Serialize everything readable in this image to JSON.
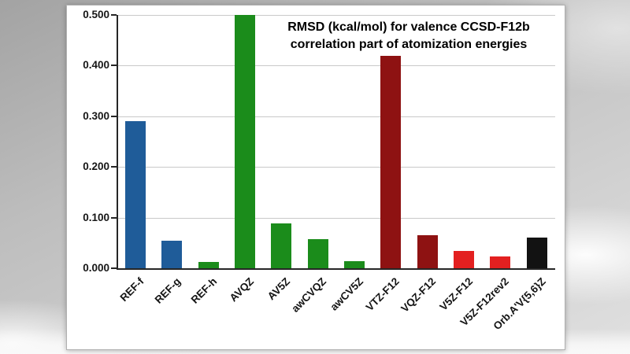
{
  "chart_data": {
    "type": "bar",
    "title": "RMSD (kcal/mol) for valence CCSD-F12b correlation part of atomization energies",
    "title_lines": [
      "RMSD (kcal/mol) for valence CCSD-F12b",
      "correlation part of atomization energies"
    ],
    "categories": [
      "REF-f",
      "REF-g",
      "REF-h",
      "AVQZ",
      "AV5Z",
      "awCVQZ",
      "awCV5Z",
      "VTZ-F12",
      "VQZ-F12",
      "V5Z-F12",
      "V5Z-F12rev2",
      "Orb.A'V{5,6}Z"
    ],
    "values": [
      0.29,
      0.055,
      0.012,
      0.5,
      0.088,
      0.057,
      0.014,
      0.42,
      0.065,
      0.034,
      0.023,
      0.06
    ],
    "bar_colors": [
      "#1f5c99",
      "#1f5c99",
      "#1b8c1b",
      "#1b8c1b",
      "#1b8c1b",
      "#1b8c1b",
      "#1b8c1b",
      "#8e1212",
      "#8e1212",
      "#e32020",
      "#e32020",
      "#121212"
    ],
    "xlabel": "",
    "ylabel": "",
    "ylim": [
      0,
      0.5
    ],
    "yticks": [
      "0.000",
      "0.100",
      "0.200",
      "0.300",
      "0.400",
      "0.500"
    ],
    "grid": true,
    "legend": "none",
    "colors": {
      "grid": "#c9c9c9",
      "axis": "#262626",
      "panel_bg": "#ffffff",
      "text": "#000000"
    }
  }
}
